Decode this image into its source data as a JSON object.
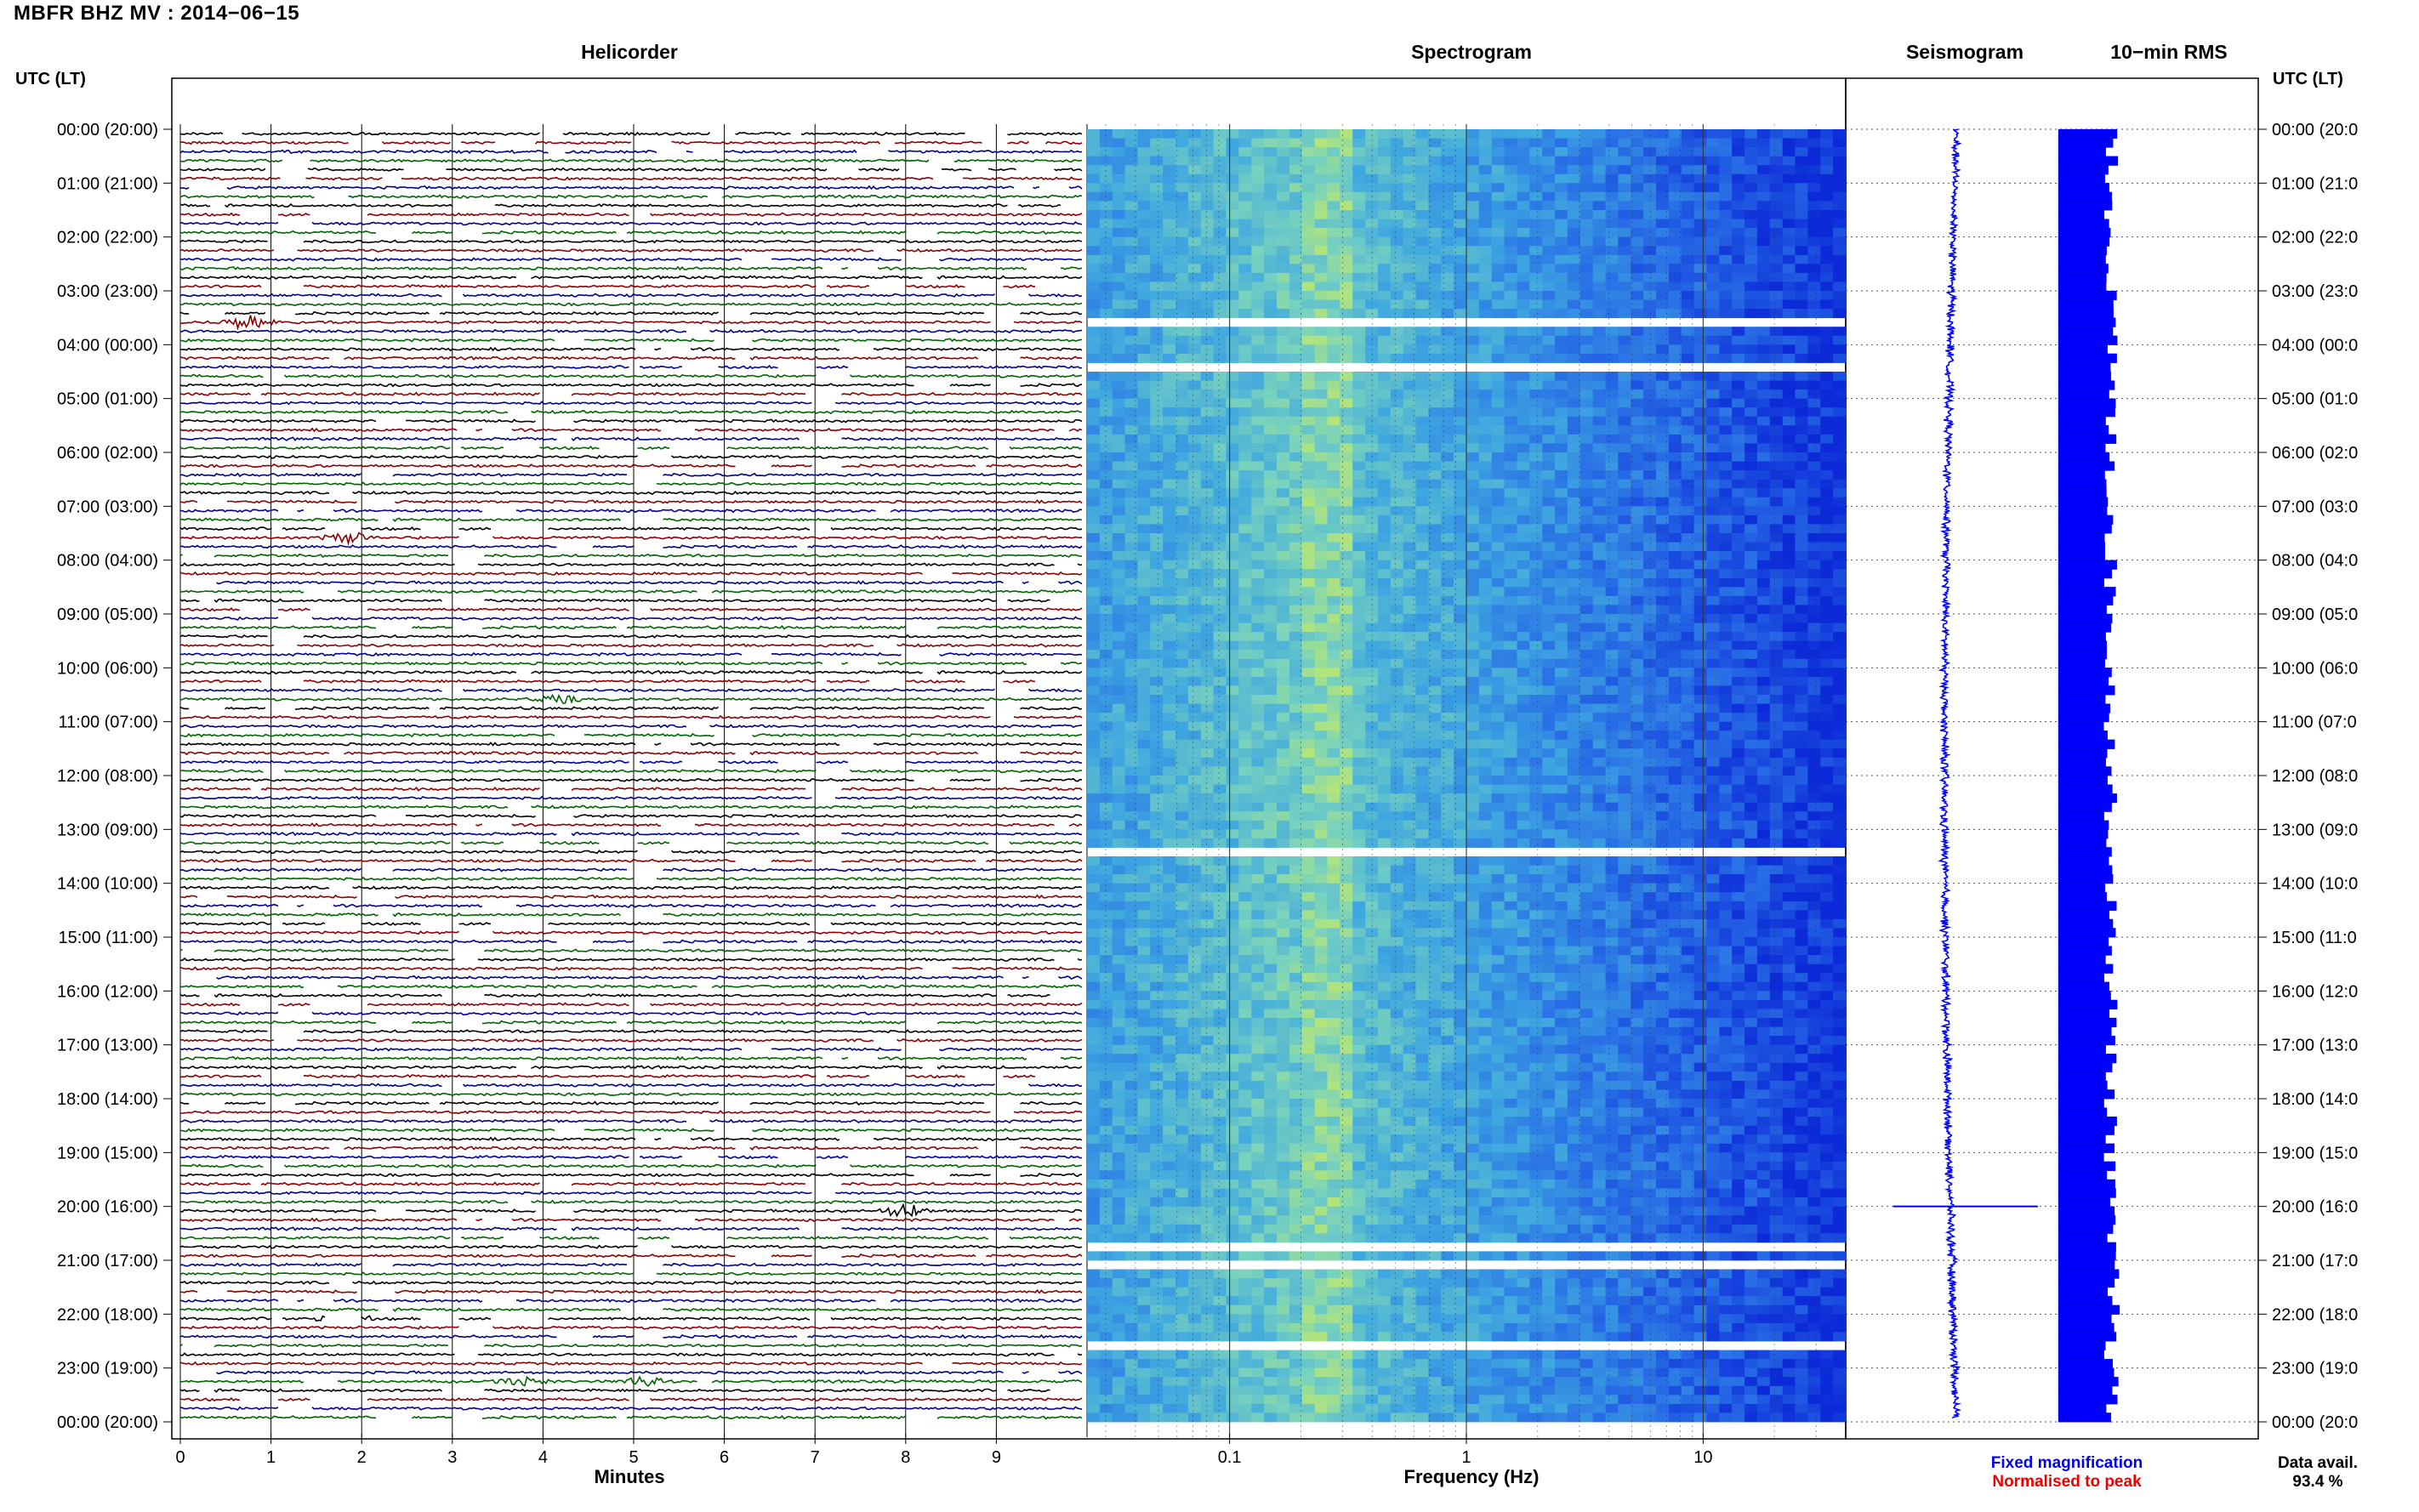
{
  "header": {
    "title": "MBFR BHZ MV : 2014−06−15"
  },
  "panels": {
    "helicorder_title": "Helicorder",
    "spectrogram_title": "Spectrogram",
    "seismogram_title": "Seismogram",
    "rms_title": "10−min RMS"
  },
  "axes": {
    "utc_label_left": "UTC (LT)",
    "utc_label_right": "UTC (LT)",
    "helicorder_xlabel": "Minutes",
    "spectrogram_xlabel": "Frequency (Hz)"
  },
  "legend": {
    "fixed": "Fixed magnification",
    "normalised": "Normalised to peak",
    "fixed_color": "#0000ee",
    "normalised_color": "#ee0000"
  },
  "availability": {
    "label": "Data avail.",
    "value": "93.4 %"
  },
  "colors": {
    "trace_cycle": [
      "#000000",
      "#8b0000",
      "#00008b",
      "#006400"
    ],
    "spectrogram_low": "#0c2ad8",
    "spectrogram_mid": "#3fa8e0",
    "spectrogram_high": "#d8f050",
    "seismogram": "#0000ff",
    "rms_bar": "#0000ff"
  },
  "chart_data": [
    {
      "type": "line",
      "name": "helicorder",
      "xlabel": "Minutes",
      "xlim": [
        0,
        10
      ],
      "x_ticks": [
        "0",
        "1",
        "2",
        "3",
        "4",
        "5",
        "6",
        "7",
        "8",
        "9"
      ],
      "lines_per_hour": 6,
      "hours": 24,
      "row_labels_left": [
        "00:00 (20:00)",
        "01:00 (21:00)",
        "02:00 (22:00)",
        "03:00 (23:00)",
        "04:00 (00:00)",
        "05:00 (01:00)",
        "06:00 (02:00)",
        "07:00 (03:00)",
        "08:00 (04:00)",
        "09:00 (05:00)",
        "10:00 (06:00)",
        "11:00 (07:00)",
        "12:00 (08:00)",
        "13:00 (09:00)",
        "14:00 (10:00)",
        "15:00 (11:00)",
        "16:00 (12:00)",
        "17:00 (13:00)",
        "18:00 (14:00)",
        "19:00 (15:00)",
        "20:00 (16:00)",
        "21:00 (17:00)",
        "22:00 (18:00)",
        "23:00 (19:00)",
        "00:00 (20:00)"
      ],
      "row_labels_right": [
        "00:00 (20:0",
        "01:00 (21:0",
        "02:00 (22:0",
        "03:00 (23:0",
        "04:00 (00:0",
        "05:00 (01:0",
        "06:00 (02:0",
        "07:00 (03:0",
        "08:00 (04:0",
        "09:00 (05:0",
        "10:00 (06:0",
        "11:00 (07:0",
        "12:00 (08:0",
        "13:00 (09:0",
        "14:00 (10:0",
        "15:00 (11:0",
        "16:00 (12:0",
        "17:00 (13:0",
        "18:00 (14:0",
        "19:00 (15:0",
        "20:00 (16:0",
        "21:00 (17:0",
        "22:00 (18:0",
        "23:00 (19:0",
        "00:00 (20:0"
      ],
      "events": [
        {
          "line": 21,
          "minute": 0.75,
          "amp": 2.0
        },
        {
          "line": 45,
          "minute": 1.85,
          "amp": 1.4
        },
        {
          "line": 63,
          "minute": 4.15,
          "amp": 1.0
        },
        {
          "line": 120,
          "minute": 8.0,
          "amp": 1.8
        },
        {
          "line": 132,
          "minute": 1.8,
          "amp": 2.5
        },
        {
          "line": 139,
          "minute": 3.75,
          "amp": 1.2
        },
        {
          "line": 139,
          "minute": 5.1,
          "amp": 1.1
        }
      ]
    },
    {
      "type": "heatmap",
      "name": "spectrogram",
      "xlabel": "Frequency (Hz)",
      "x_scale": "log",
      "xlim": [
        0.025,
        40
      ],
      "x_ticks": [
        0.1,
        1,
        10
      ],
      "x_tick_labels": [
        "0.1",
        "1",
        "10"
      ],
      "peak_band_hz": [
        0.2,
        0.35
      ]
    },
    {
      "type": "line",
      "name": "seismogram",
      "note_spike_hour": 20.0
    },
    {
      "type": "bar",
      "name": "10-min RMS",
      "bars": 144,
      "values_relative": [
        0.55,
        0.95,
        0.5,
        0.6,
        0.55,
        0.58
      ]
    }
  ]
}
